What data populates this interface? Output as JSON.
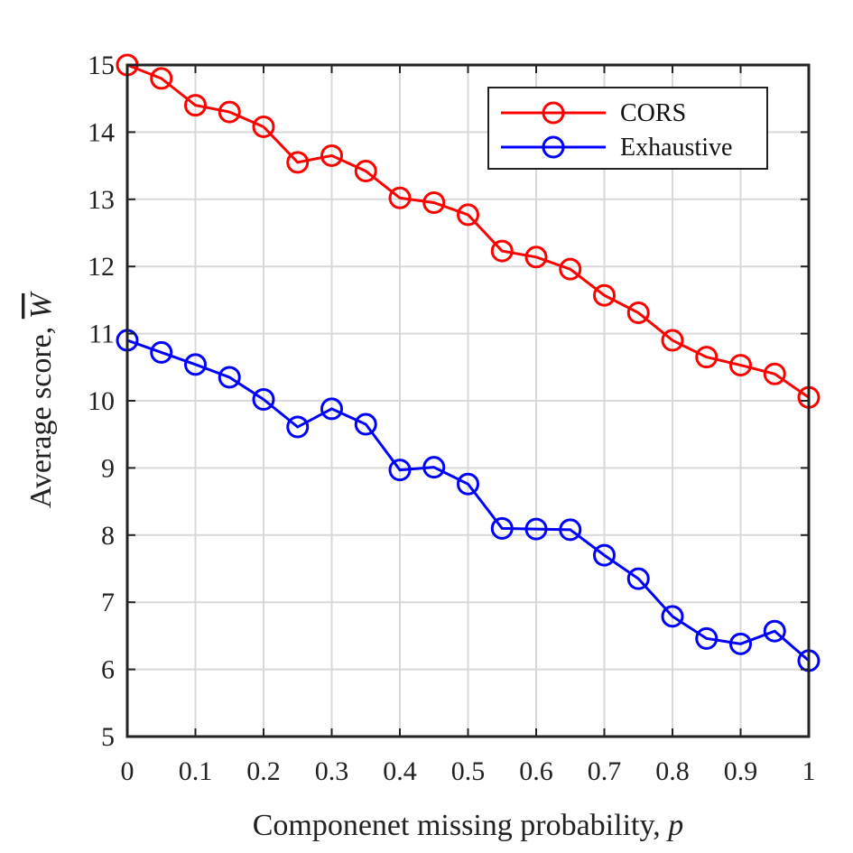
{
  "chart_data": {
    "type": "line",
    "xlabel": "Componenet missing probability, ",
    "xlabel_var": "p",
    "ylabel": "Average score, ",
    "ylabel_var": "W",
    "xlim": [
      0,
      1
    ],
    "ylim": [
      5,
      15
    ],
    "x_ticks": [
      "0",
      "0.1",
      "0.2",
      "0.3",
      "0.4",
      "0.5",
      "0.6",
      "0.7",
      "0.8",
      "0.9",
      "1"
    ],
    "y_ticks": [
      "5",
      "6",
      "7",
      "8",
      "9",
      "10",
      "11",
      "12",
      "13",
      "14",
      "15"
    ],
    "grid": true,
    "legend_position": "top-right",
    "x": [
      0,
      0.05,
      0.1,
      0.15,
      0.2,
      0.25,
      0.3,
      0.35,
      0.4,
      0.45,
      0.5,
      0.55,
      0.6,
      0.65,
      0.7,
      0.75,
      0.8,
      0.85,
      0.9,
      0.95,
      1
    ],
    "series": [
      {
        "name": "CORS",
        "color": "#ff0000",
        "values": [
          15.0,
          14.8,
          14.4,
          14.3,
          14.08,
          13.55,
          13.65,
          13.42,
          13.02,
          12.95,
          12.77,
          12.23,
          12.14,
          11.96,
          11.57,
          11.31,
          10.9,
          10.65,
          10.53,
          10.4,
          10.05
        ]
      },
      {
        "name": "Exhaustive",
        "color": "#0000ff",
        "values": [
          10.9,
          10.72,
          10.54,
          10.35,
          10.02,
          9.61,
          9.88,
          9.65,
          8.97,
          9.01,
          8.76,
          8.1,
          8.09,
          8.08,
          7.7,
          7.35,
          6.79,
          6.46,
          6.38,
          6.57,
          6.13
        ]
      }
    ]
  }
}
